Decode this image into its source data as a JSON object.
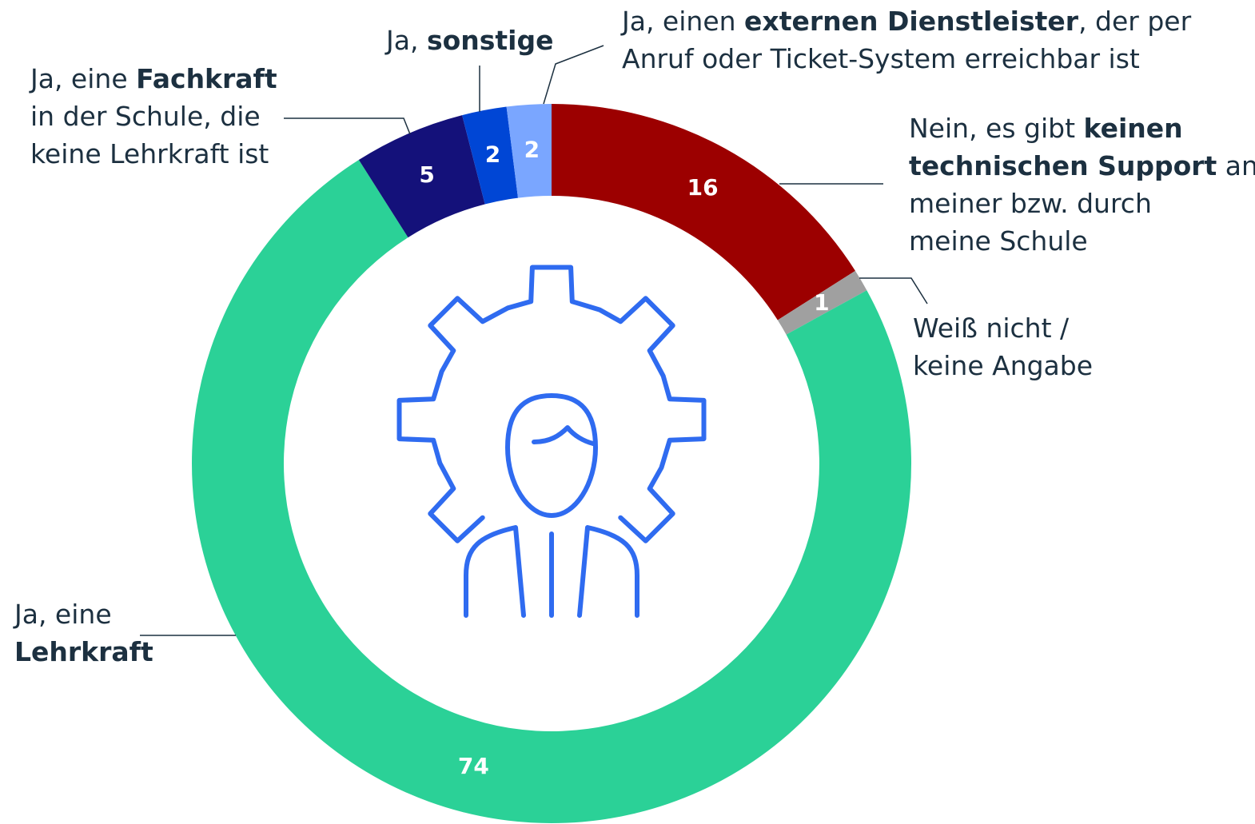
{
  "chart_data": {
    "type": "donut",
    "values": [
      16,
      1,
      74,
      5,
      2,
      2
    ],
    "colors": [
      "#9c0000",
      "#a0a0a0",
      "#2bd197",
      "#14117a",
      "#0046d5",
      "#7aa6ff"
    ],
    "categories": [
      [
        [
          {
            "text": "Nein, es gibt "
          },
          {
            "text": "keinen",
            "bold": true
          }
        ],
        [
          {
            "text": "technischen Support",
            "bold": true
          },
          {
            "text": " an"
          }
        ],
        [
          {
            "text": "meiner bzw. durch"
          }
        ],
        [
          {
            "text": "meine Schule"
          }
        ]
      ],
      [
        [
          {
            "text": "Weiß nicht /"
          }
        ],
        [
          {
            "text": "keine Angabe"
          }
        ]
      ],
      [
        [
          {
            "text": "Ja, eine"
          }
        ],
        [
          {
            "text": "Lehrkraft",
            "bold": true
          }
        ]
      ],
      [
        [
          {
            "text": "Ja, eine "
          },
          {
            "text": "Fachkraft",
            "bold": true
          }
        ],
        [
          {
            "text": "in der Schule, die"
          }
        ],
        [
          {
            "text": "keine Lehrkraft ist"
          }
        ]
      ],
      [
        [
          {
            "text": "Ja, "
          },
          {
            "text": "sonstige",
            "bold": true
          }
        ]
      ],
      [
        [
          {
            "text": "Ja, einen "
          },
          {
            "text": "externen Dienstleister",
            "bold": true
          },
          {
            "text": ", der per"
          }
        ],
        [
          {
            "text": "Anruf oder Ticket-System erreichbar ist"
          }
        ]
      ]
    ]
  }
}
